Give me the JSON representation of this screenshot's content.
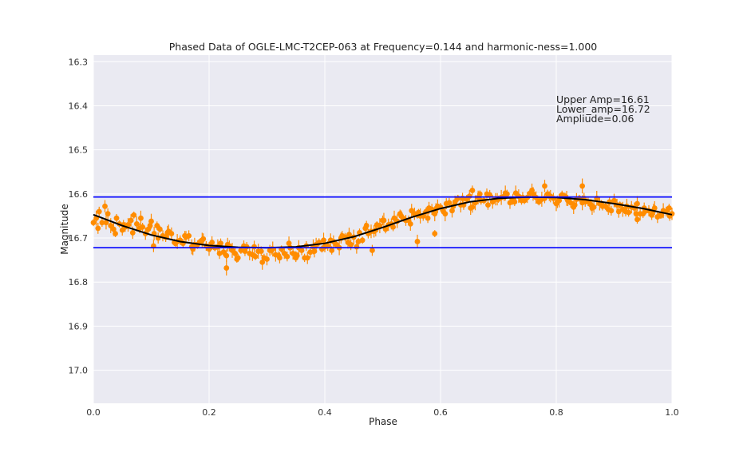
{
  "chart_data": {
    "type": "scatter",
    "title": "Phased Data of OGLE-LMC-T2CEP-063 at Frequency=0.144 and harmonic-ness=1.000",
    "xlabel": "Phase",
    "ylabel": "Magnitude",
    "xlim": [
      0.0,
      1.0
    ],
    "ylim": [
      17.075,
      16.285
    ],
    "y_inverted": true,
    "xticks": [
      "0.0",
      "0.2",
      "0.4",
      "0.6",
      "0.8",
      "1.0"
    ],
    "yticks": [
      "16.3",
      "16.4",
      "16.5",
      "16.6",
      "16.7",
      "16.8",
      "16.9",
      "17.0"
    ],
    "grid": true,
    "background": "#EAEAF2",
    "marker_color": "#FF8C00",
    "fit_color": "#000000",
    "hline_color": "#0000FF",
    "hlines": [
      16.607,
      16.722
    ],
    "annotations": [
      "Upper Amp=16.61",
      "Lower_amp=16.72",
      "Ampliude=0.06"
    ],
    "series": [
      {
        "kind": "data",
        "x": [
          0.0,
          0.01,
          0.02,
          0.03,
          0.04,
          0.05,
          0.06,
          0.07,
          0.08,
          0.09,
          0.1,
          0.11,
          0.12,
          0.13,
          0.14,
          0.15,
          0.16,
          0.17,
          0.18,
          0.19,
          0.2,
          0.21,
          0.22,
          0.23,
          0.24,
          0.25,
          0.26,
          0.27,
          0.28,
          0.29,
          0.3,
          0.31,
          0.32,
          0.33,
          0.34,
          0.35,
          0.36,
          0.37,
          0.38,
          0.39,
          0.4,
          0.41,
          0.42,
          0.43,
          0.44,
          0.45,
          0.46,
          0.47,
          0.48,
          0.49,
          0.5,
          0.51,
          0.52,
          0.53,
          0.54,
          0.55,
          0.56,
          0.57,
          0.58,
          0.59,
          0.6,
          0.61,
          0.62,
          0.63,
          0.64,
          0.65,
          0.66,
          0.67,
          0.68,
          0.69,
          0.7,
          0.71,
          0.72,
          0.73,
          0.74,
          0.75,
          0.76,
          0.77,
          0.78,
          0.79,
          0.8,
          0.81,
          0.82,
          0.83,
          0.84,
          0.85,
          0.86,
          0.87,
          0.88,
          0.89,
          0.9,
          0.91,
          0.92,
          0.93,
          0.94,
          0.95,
          0.96,
          0.97,
          0.98,
          0.99,
          1.0,
          0.005,
          0.015,
          0.025,
          0.035,
          0.045,
          0.055,
          0.065,
          0.075,
          0.085,
          0.095,
          0.105,
          0.115,
          0.125,
          0.135,
          0.145,
          0.155,
          0.165,
          0.175,
          0.185,
          0.195,
          0.205,
          0.215,
          0.225,
          0.235,
          0.245,
          0.255,
          0.265,
          0.275,
          0.285,
          0.295,
          0.305,
          0.315,
          0.325,
          0.335,
          0.345,
          0.355,
          0.365,
          0.375,
          0.385,
          0.395,
          0.405,
          0.415,
          0.425,
          0.435,
          0.445,
          0.455,
          0.465,
          0.475,
          0.485,
          0.495,
          0.505,
          0.515,
          0.525,
          0.535,
          0.545,
          0.555,
          0.565,
          0.575,
          0.585,
          0.595,
          0.605,
          0.615,
          0.625,
          0.635,
          0.645,
          0.655,
          0.665,
          0.675,
          0.685,
          0.695,
          0.705,
          0.715,
          0.725,
          0.735,
          0.745,
          0.755,
          0.765,
          0.775,
          0.785,
          0.795,
          0.805,
          0.815,
          0.825,
          0.835,
          0.845,
          0.855,
          0.865,
          0.875,
          0.885,
          0.895,
          0.905,
          0.915,
          0.925,
          0.935,
          0.945,
          0.955,
          0.965,
          0.975,
          0.985,
          0.995,
          0.008,
          0.022,
          0.038,
          0.052,
          0.068,
          0.082,
          0.098,
          0.112,
          0.128,
          0.142,
          0.158,
          0.172,
          0.188,
          0.202,
          0.218,
          0.232,
          0.248,
          0.262,
          0.278,
          0.292,
          0.308,
          0.322,
          0.338,
          0.352,
          0.368,
          0.382,
          0.398,
          0.412,
          0.428,
          0.442,
          0.458,
          0.472,
          0.488,
          0.502,
          0.518,
          0.532,
          0.548,
          0.562,
          0.578,
          0.592,
          0.608,
          0.622,
          0.638,
          0.652,
          0.668,
          0.682,
          0.698,
          0.712,
          0.728,
          0.742,
          0.758,
          0.772,
          0.788,
          0.802,
          0.818,
          0.832,
          0.848,
          0.862,
          0.878,
          0.892,
          0.908,
          0.922,
          0.938,
          0.952,
          0.968,
          0.982,
          0.996,
          0.104,
          0.23,
          0.35,
          0.482,
          0.56,
          0.59,
          0.655,
          0.78,
          0.845,
          0.94
        ],
        "y": [
          16.665,
          16.64,
          16.628,
          16.672,
          16.655,
          16.682,
          16.67,
          16.648,
          16.678,
          16.69,
          16.662,
          16.672,
          16.695,
          16.685,
          16.71,
          16.705,
          16.698,
          16.72,
          16.715,
          16.702,
          16.725,
          16.722,
          16.712,
          16.74,
          16.728,
          16.745,
          16.718,
          16.735,
          16.742,
          16.73,
          16.748,
          16.725,
          16.74,
          16.735,
          16.722,
          16.738,
          16.728,
          16.745,
          16.72,
          16.71,
          16.72,
          16.705,
          16.715,
          16.695,
          16.71,
          16.698,
          16.688,
          16.678,
          16.685,
          16.67,
          16.66,
          16.67,
          16.655,
          16.645,
          16.66,
          16.638,
          16.648,
          16.65,
          16.632,
          16.645,
          16.63,
          16.622,
          16.638,
          16.61,
          16.625,
          16.605,
          16.62,
          16.615,
          16.6,
          16.618,
          16.612,
          16.605,
          16.62,
          16.598,
          16.615,
          16.608,
          16.6,
          16.618,
          16.61,
          16.605,
          16.622,
          16.602,
          16.615,
          16.63,
          16.61,
          16.618,
          16.625,
          16.61,
          16.628,
          16.635,
          16.615,
          16.625,
          16.64,
          16.63,
          16.622,
          16.645,
          16.638,
          16.632,
          16.648,
          16.64,
          16.645,
          16.655,
          16.665,
          16.645,
          16.68,
          16.668,
          16.675,
          16.66,
          16.668,
          16.675,
          16.68,
          16.69,
          16.68,
          16.698,
          16.69,
          16.708,
          16.712,
          16.695,
          16.715,
          16.708,
          16.718,
          16.71,
          16.72,
          16.732,
          16.718,
          16.735,
          16.728,
          16.72,
          16.738,
          16.73,
          16.745,
          16.728,
          16.738,
          16.725,
          16.742,
          16.735,
          16.722,
          16.745,
          16.732,
          16.715,
          16.725,
          16.718,
          16.708,
          16.722,
          16.698,
          16.715,
          16.72,
          16.705,
          16.69,
          16.685,
          16.672,
          16.68,
          16.668,
          16.662,
          16.655,
          16.66,
          16.645,
          16.65,
          16.64,
          16.635,
          16.628,
          16.64,
          16.62,
          16.618,
          16.625,
          16.612,
          16.63,
          16.608,
          16.615,
          16.602,
          16.612,
          16.608,
          16.6,
          16.612,
          16.605,
          16.615,
          16.598,
          16.608,
          16.612,
          16.6,
          16.61,
          16.615,
          16.605,
          16.62,
          16.612,
          16.62,
          16.618,
          16.63,
          16.622,
          16.628,
          16.638,
          16.625,
          16.635,
          16.642,
          16.632,
          16.645,
          16.638,
          16.648,
          16.652,
          16.638,
          16.632,
          16.678,
          16.665,
          16.69,
          16.67,
          16.688,
          16.655,
          16.672,
          16.7,
          16.688,
          16.712,
          16.695,
          16.725,
          16.705,
          16.722,
          16.735,
          16.715,
          16.748,
          16.73,
          16.72,
          16.755,
          16.728,
          16.745,
          16.712,
          16.74,
          16.718,
          16.73,
          16.705,
          16.728,
          16.7,
          16.692,
          16.708,
          16.672,
          16.682,
          16.66,
          16.675,
          16.65,
          16.668,
          16.642,
          16.655,
          16.635,
          16.645,
          16.628,
          16.61,
          16.632,
          16.6,
          16.625,
          16.612,
          16.598,
          16.618,
          16.608,
          16.592,
          16.615,
          16.605,
          16.618,
          16.61,
          16.625,
          16.61,
          16.632,
          16.622,
          16.618,
          16.64,
          16.628,
          16.645,
          16.632,
          16.638,
          16.648,
          16.65,
          16.718,
          16.768,
          16.745,
          16.728,
          16.708,
          16.69,
          16.592,
          16.582,
          16.582,
          16.658
        ]
      },
      {
        "kind": "fit",
        "x": [
          0.0,
          0.05,
          0.1,
          0.15,
          0.2,
          0.25,
          0.3,
          0.35,
          0.4,
          0.45,
          0.5,
          0.55,
          0.6,
          0.65,
          0.7,
          0.75,
          0.8,
          0.85,
          0.9,
          0.95,
          1.0
        ],
        "y": [
          16.647,
          16.672,
          16.693,
          16.708,
          16.717,
          16.721,
          16.722,
          16.72,
          16.712,
          16.697,
          16.676,
          16.653,
          16.633,
          16.618,
          16.61,
          16.607,
          16.608,
          16.613,
          16.622,
          16.633,
          16.647
        ]
      }
    ]
  }
}
